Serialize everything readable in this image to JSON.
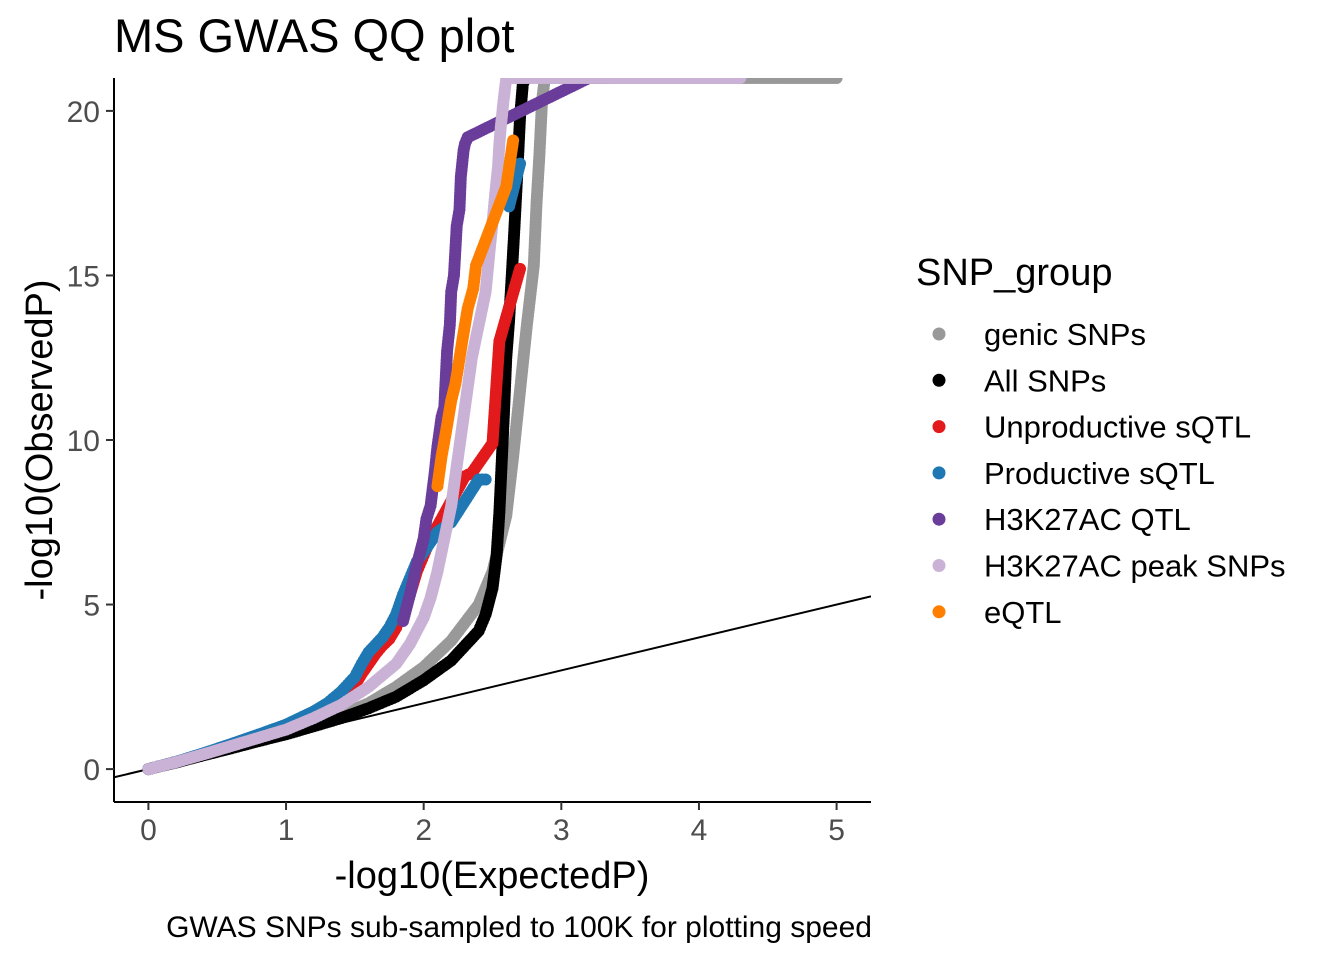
{
  "chart_data": {
    "type": "scatter",
    "title": "MS GWAS QQ plot",
    "xlabel": "-log10(ExpectedP)",
    "ylabel": "-log10(ObservedP)",
    "caption": "GWAS SNPs sub-sampled to 100K for plotting speed",
    "xlim": [
      -0.25,
      5.25
    ],
    "ylim": [
      -1,
      21
    ],
    "x_ticks": [
      0,
      1,
      2,
      3,
      4,
      5
    ],
    "y_ticks": [
      0,
      5,
      10,
      15,
      20
    ],
    "grid": false,
    "reference_line": {
      "intercept": 0,
      "slope": 1
    },
    "legend": {
      "title": "SNP_group",
      "position": "right",
      "entries": [
        {
          "label": "genic SNPs",
          "color": "#999999"
        },
        {
          "label": "All SNPs",
          "color": "#000000"
        },
        {
          "label": "Unproductive sQTL",
          "color": "#e31a1c"
        },
        {
          "label": "Productive sQTL",
          "color": "#1f78b4"
        },
        {
          "label": "H3K27AC QTL",
          "color": "#6a3d9a"
        },
        {
          "label": "H3K27AC peak SNPs",
          "color": "#cab2d6"
        },
        {
          "label": "eQTL",
          "color": "#ff7f00"
        }
      ]
    },
    "series": [
      {
        "color": "#999999",
        "points": [
          [
            0,
            0
          ],
          [
            0.2,
            0.21
          ],
          [
            0.4,
            0.44
          ],
          [
            0.6,
            0.66
          ],
          [
            0.8,
            0.88
          ],
          [
            1.0,
            1.1
          ],
          [
            1.2,
            1.36
          ],
          [
            1.4,
            1.65
          ],
          [
            1.6,
            2.0
          ],
          [
            1.8,
            2.5
          ],
          [
            2.0,
            3.1
          ],
          [
            2.2,
            3.9
          ],
          [
            2.4,
            5.0
          ],
          [
            2.5,
            6.0
          ],
          [
            2.6,
            7.7
          ],
          [
            2.65,
            9.5
          ],
          [
            2.7,
            11.5
          ],
          [
            2.75,
            13.5
          ],
          [
            2.8,
            15.3
          ],
          [
            2.82,
            17.2
          ],
          [
            2.84,
            18.6
          ],
          [
            2.86,
            20.3
          ],
          [
            2.88,
            21
          ],
          [
            4.0,
            21
          ],
          [
            4.2,
            21
          ],
          [
            4.35,
            21
          ],
          [
            4.5,
            21
          ],
          [
            4.65,
            21
          ],
          [
            4.82,
            21
          ],
          [
            5.0,
            21
          ]
        ]
      },
      {
        "color": "#000000",
        "points": [
          [
            0,
            0
          ],
          [
            0.2,
            0.2
          ],
          [
            0.4,
            0.42
          ],
          [
            0.6,
            0.63
          ],
          [
            0.8,
            0.85
          ],
          [
            1.0,
            1.06
          ],
          [
            1.2,
            1.3
          ],
          [
            1.4,
            1.55
          ],
          [
            1.6,
            1.85
          ],
          [
            1.8,
            2.2
          ],
          [
            2.0,
            2.7
          ],
          [
            2.2,
            3.3
          ],
          [
            2.4,
            4.2
          ],
          [
            2.45,
            4.7
          ],
          [
            2.5,
            5.5
          ],
          [
            2.53,
            6.5
          ],
          [
            2.55,
            7.8
          ],
          [
            2.58,
            10.5
          ],
          [
            2.6,
            12.5
          ],
          [
            2.62,
            13.6
          ],
          [
            2.64,
            15.0
          ],
          [
            2.66,
            16.5
          ],
          [
            2.68,
            18.1
          ],
          [
            2.7,
            19.8
          ],
          [
            2.72,
            20.8
          ],
          [
            2.74,
            21
          ]
        ]
      },
      {
        "color": "#e31a1c",
        "points": [
          [
            0,
            0
          ],
          [
            0.2,
            0.22
          ],
          [
            0.4,
            0.46
          ],
          [
            0.6,
            0.72
          ],
          [
            0.8,
            0.98
          ],
          [
            1.0,
            1.25
          ],
          [
            1.1,
            1.45
          ],
          [
            1.2,
            1.6
          ],
          [
            1.3,
            1.8
          ],
          [
            1.4,
            2.1
          ],
          [
            1.5,
            2.55
          ],
          [
            1.55,
            2.9
          ],
          [
            1.6,
            3.2
          ],
          [
            1.65,
            3.5
          ],
          [
            1.7,
            3.75
          ],
          [
            1.75,
            3.95
          ],
          [
            1.8,
            4.3
          ],
          [
            1.85,
            4.9
          ],
          [
            1.9,
            5.3
          ],
          [
            1.95,
            6.0
          ],
          [
            2.0,
            6.5
          ],
          [
            2.05,
            7.0
          ],
          [
            2.3,
            8.9
          ],
          [
            2.35,
            9.0
          ],
          [
            2.5,
            9.9
          ],
          [
            2.55,
            13.0
          ],
          [
            2.7,
            15.2
          ]
        ]
      },
      {
        "color": "#1f78b4",
        "points": [
          [
            0,
            0
          ],
          [
            0.2,
            0.22
          ],
          [
            0.4,
            0.48
          ],
          [
            0.6,
            0.76
          ],
          [
            0.8,
            1.05
          ],
          [
            1.0,
            1.35
          ],
          [
            1.1,
            1.55
          ],
          [
            1.2,
            1.75
          ],
          [
            1.3,
            2.0
          ],
          [
            1.4,
            2.35
          ],
          [
            1.5,
            2.8
          ],
          [
            1.55,
            3.2
          ],
          [
            1.6,
            3.55
          ],
          [
            1.7,
            4.0
          ],
          [
            1.75,
            4.3
          ],
          [
            1.8,
            4.7
          ],
          [
            1.85,
            5.3
          ],
          [
            1.9,
            5.8
          ],
          [
            1.95,
            6.3
          ],
          [
            2.05,
            6.9
          ],
          [
            2.1,
            7.2
          ],
          [
            2.2,
            7.5
          ],
          [
            2.4,
            8.8
          ],
          [
            2.45,
            8.8
          ],
          [
            2.62,
            17.1
          ],
          [
            2.7,
            18.4
          ]
        ]
      },
      {
        "color": "#6a3d9a",
        "points": [
          [
            1.85,
            4.5
          ],
          [
            1.9,
            5.3
          ],
          [
            1.95,
            6.2
          ],
          [
            2.0,
            7.0
          ],
          [
            2.02,
            7.6
          ],
          [
            2.05,
            8.0
          ],
          [
            2.08,
            9.0
          ],
          [
            2.1,
            9.8
          ],
          [
            2.13,
            10.7
          ],
          [
            2.15,
            11.0
          ],
          [
            2.17,
            12.7
          ],
          [
            2.19,
            13.5
          ],
          [
            2.2,
            14.5
          ],
          [
            2.22,
            15.0
          ],
          [
            2.24,
            16.5
          ],
          [
            2.26,
            17.0
          ],
          [
            2.27,
            18.0
          ],
          [
            2.29,
            18.8
          ],
          [
            2.3,
            19.0
          ],
          [
            2.32,
            19.2
          ],
          [
            3.2,
            21
          ],
          [
            3.35,
            21
          ]
        ]
      },
      {
        "color": "#cab2d6",
        "points": [
          [
            0,
            0
          ],
          [
            0.2,
            0.21
          ],
          [
            0.4,
            0.45
          ],
          [
            0.6,
            0.7
          ],
          [
            0.8,
            0.95
          ],
          [
            1.0,
            1.2
          ],
          [
            1.2,
            1.55
          ],
          [
            1.4,
            1.95
          ],
          [
            1.6,
            2.5
          ],
          [
            1.8,
            3.2
          ],
          [
            1.9,
            3.8
          ],
          [
            2.0,
            4.6
          ],
          [
            2.05,
            5.2
          ],
          [
            2.1,
            6.0
          ],
          [
            2.15,
            7.0
          ],
          [
            2.2,
            8.0
          ],
          [
            2.25,
            9.5
          ],
          [
            2.3,
            11.0
          ],
          [
            2.35,
            12.5
          ],
          [
            2.4,
            13.5
          ],
          [
            2.45,
            14.5
          ],
          [
            2.48,
            15.8
          ],
          [
            2.5,
            16.6
          ],
          [
            2.52,
            17.5
          ],
          [
            2.54,
            18.3
          ],
          [
            2.55,
            19.0
          ],
          [
            2.56,
            19.5
          ],
          [
            2.58,
            20.3
          ],
          [
            2.6,
            21
          ],
          [
            3.5,
            21
          ],
          [
            3.7,
            21
          ],
          [
            3.9,
            21
          ],
          [
            4.1,
            21
          ],
          [
            4.3,
            21
          ]
        ]
      },
      {
        "color": "#ff7f00",
        "points": [
          [
            2.1,
            8.6
          ],
          [
            2.13,
            9.5
          ],
          [
            2.16,
            10.2
          ],
          [
            2.2,
            11.2
          ],
          [
            2.23,
            11.7
          ],
          [
            2.25,
            12.2
          ],
          [
            2.28,
            13.0
          ],
          [
            2.32,
            14.0
          ],
          [
            2.36,
            14.6
          ],
          [
            2.38,
            15.3
          ],
          [
            2.6,
            17.7
          ],
          [
            2.65,
            19.1
          ]
        ]
      }
    ]
  }
}
